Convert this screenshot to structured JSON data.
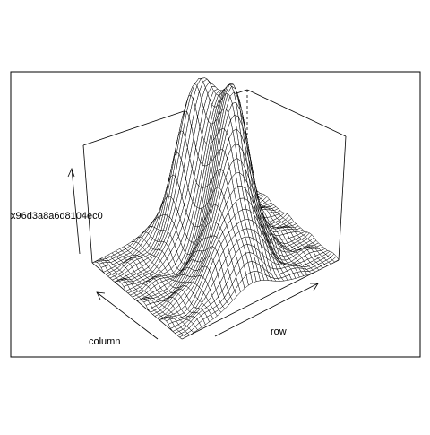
{
  "chart_data": {
    "type": "surface",
    "zlabel": "x96d3a8a6d8104ec0",
    "xlabel": "row",
    "ylabel": "column",
    "style": "wireframe perspective",
    "description_free": true,
    "surface": {
      "rows": 40,
      "cols": 40,
      "peaks": [
        {
          "row": 0.22,
          "col": 0.55,
          "height": 1.0,
          "spread": 0.12
        },
        {
          "row": 0.45,
          "col": 0.62,
          "height": 0.75,
          "spread": 0.1
        },
        {
          "row": 0.6,
          "col": 0.55,
          "height": 0.7,
          "spread": 0.1
        },
        {
          "row": 0.78,
          "col": 0.45,
          "height": 0.45,
          "spread": 0.14
        }
      ]
    },
    "colors": {
      "wire": "#000000",
      "box": "#000000",
      "frame": "#000000"
    }
  }
}
